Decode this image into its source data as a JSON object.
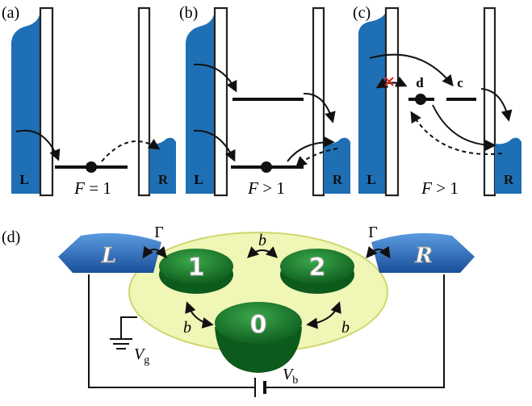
{
  "panels": [
    {
      "label": "(a)",
      "left": "L",
      "right": "R",
      "caption": {
        "var": "F",
        "rel": "= 1"
      }
    },
    {
      "label": "(b)",
      "left": "L",
      "right": "R",
      "caption": {
        "var": "F",
        "rel": "> 1"
      }
    },
    {
      "label": "(c)",
      "left": "L",
      "right": "R",
      "caption": {
        "var": "F",
        "rel": "> 1"
      },
      "levels": [
        "d",
        "c"
      ]
    }
  ],
  "panel_d": {
    "label": "(d)",
    "leads": [
      "L",
      "R"
    ],
    "dots": [
      "1",
      "2",
      "0"
    ],
    "tunneling": [
      "Γ",
      "Γ"
    ],
    "couplings": [
      "b",
      "b",
      "b"
    ],
    "gate": {
      "main": "V",
      "sub": "g"
    },
    "bias": {
      "main": "V",
      "sub": "b"
    }
  }
}
